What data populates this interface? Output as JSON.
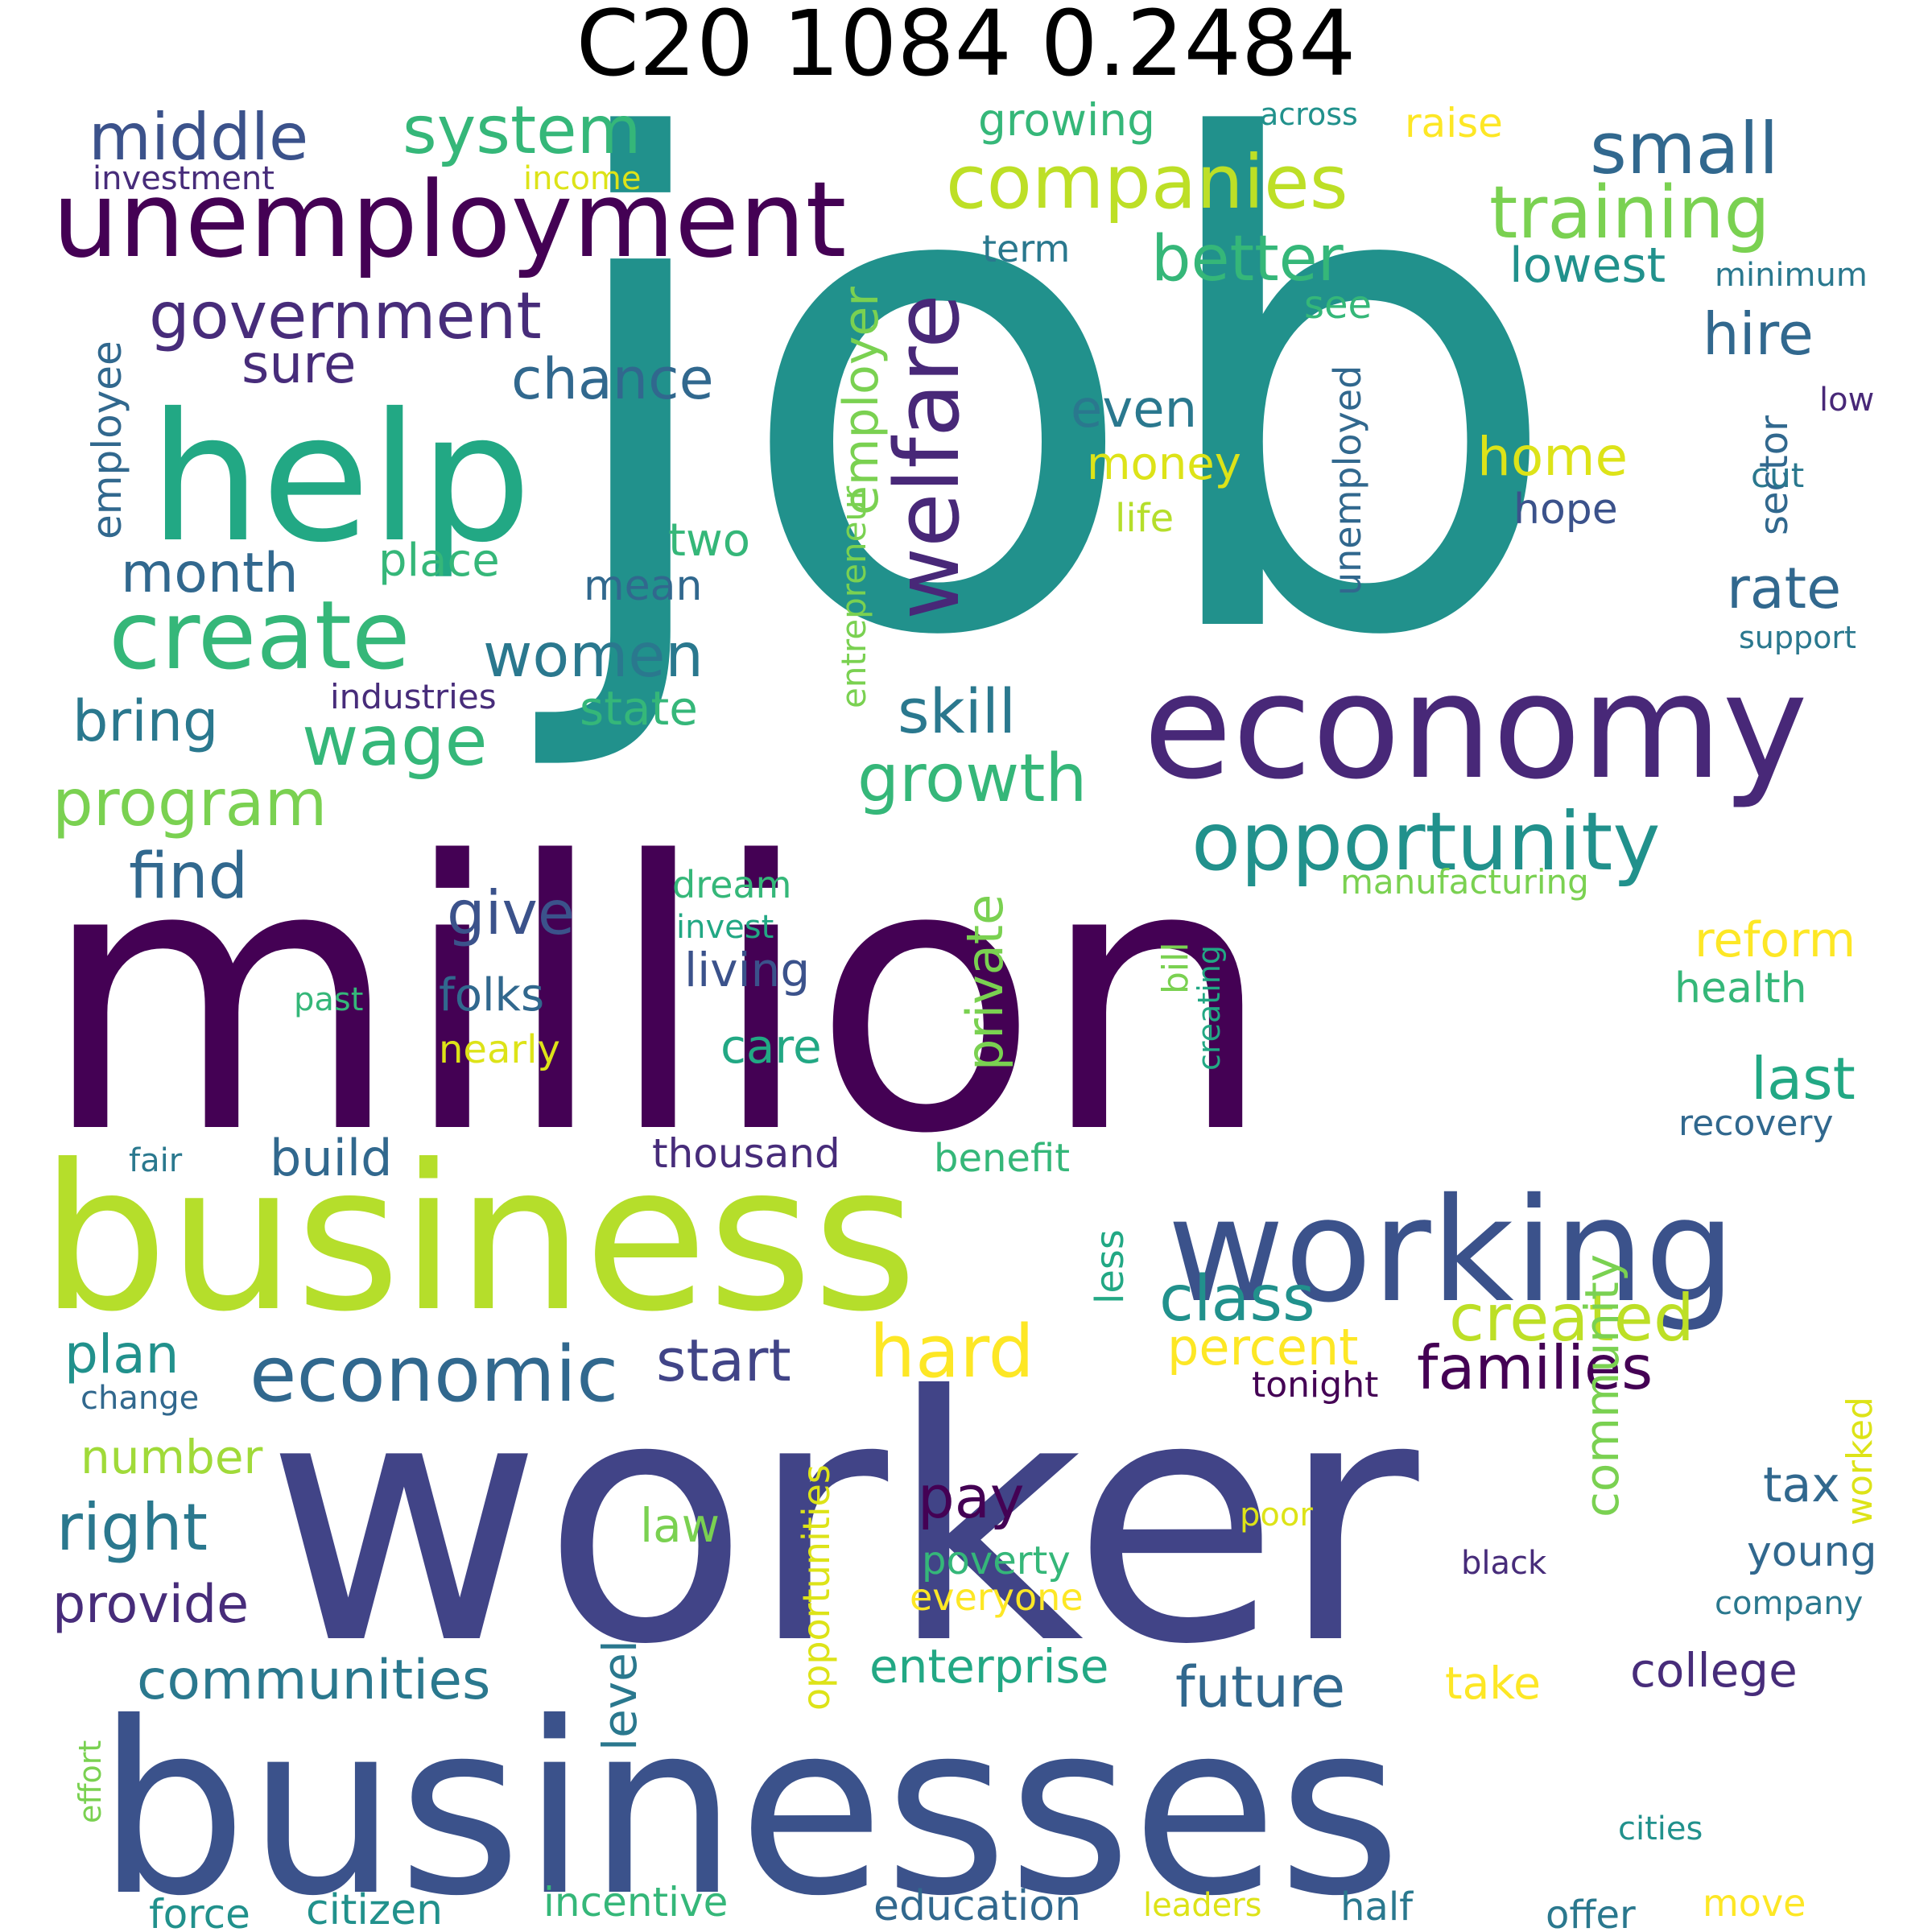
{
  "title": "C20 1084 0.2484",
  "words": [
    {
      "text": "job",
      "color": "#21918c"
    },
    {
      "text": "million",
      "color": "#440154"
    },
    {
      "text": "worker",
      "color": "#414487"
    },
    {
      "text": "businesses",
      "color": "#3b528b"
    },
    {
      "text": "business",
      "color": "#b5de2b"
    },
    {
      "text": "help",
      "color": "#22a884"
    },
    {
      "text": "economy",
      "color": "#482878"
    },
    {
      "text": "working",
      "color": "#3b528b"
    },
    {
      "text": "unemployment",
      "color": "#440154"
    },
    {
      "text": "create",
      "color": "#35b779"
    },
    {
      "text": "opportunity",
      "color": "#21918c"
    },
    {
      "text": "welfare",
      "color": "#482878"
    },
    {
      "text": "economic",
      "color": "#31688e"
    },
    {
      "text": "companies",
      "color": "#bddf26"
    },
    {
      "text": "training",
      "color": "#7ad151"
    },
    {
      "text": "system",
      "color": "#35b779"
    },
    {
      "text": "middle",
      "color": "#3b528b"
    },
    {
      "text": "government",
      "color": "#472c7a"
    },
    {
      "text": "small",
      "color": "#31688e"
    },
    {
      "text": "better",
      "color": "#35b779"
    },
    {
      "text": "wage",
      "color": "#35b779"
    },
    {
      "text": "growth",
      "color": "#35b779"
    },
    {
      "text": "program",
      "color": "#7ad151"
    },
    {
      "text": "hard",
      "color": "#fde725"
    },
    {
      "text": "created",
      "color": "#bddf26"
    },
    {
      "text": "families",
      "color": "#440154"
    },
    {
      "text": "class",
      "color": "#21918c"
    },
    {
      "text": "women",
      "color": "#2a788e"
    },
    {
      "text": "skill",
      "color": "#2a788e"
    },
    {
      "text": "start",
      "color": "#414487"
    },
    {
      "text": "right",
      "color": "#2a788e"
    },
    {
      "text": "future",
      "color": "#31688e"
    },
    {
      "text": "communities",
      "color": "#2a788e"
    },
    {
      "text": "pay",
      "color": "#440154"
    },
    {
      "text": "give",
      "color": "#3b528b"
    },
    {
      "text": "find",
      "color": "#31688e"
    },
    {
      "text": "chance",
      "color": "#31688e"
    },
    {
      "text": "hire",
      "color": "#31688e"
    },
    {
      "text": "rate",
      "color": "#31688e"
    },
    {
      "text": "last",
      "color": "#22a884"
    },
    {
      "text": "sure",
      "color": "#472c7a"
    },
    {
      "text": "bring",
      "color": "#2a788e"
    },
    {
      "text": "month",
      "color": "#31688e"
    },
    {
      "text": "even",
      "color": "#2a788e"
    },
    {
      "text": "home",
      "color": "#dde318"
    },
    {
      "text": "lowest",
      "color": "#21918c"
    },
    {
      "text": "provide",
      "color": "#472c7a"
    },
    {
      "text": "plan",
      "color": "#21918c"
    },
    {
      "text": "private",
      "color": "#7ad151"
    },
    {
      "text": "employer",
      "color": "#7ad151"
    },
    {
      "text": "community",
      "color": "#7ad151"
    },
    {
      "text": "percent",
      "color": "#fde725"
    },
    {
      "text": "level",
      "color": "#2a788e"
    },
    {
      "text": "reform",
      "color": "#fde725"
    },
    {
      "text": "enterprise",
      "color": "#22a884"
    },
    {
      "text": "build",
      "color": "#31688e"
    },
    {
      "text": "tax",
      "color": "#31688e"
    },
    {
      "text": "college",
      "color": "#472c7a"
    },
    {
      "text": "state",
      "color": "#35b779"
    },
    {
      "text": "place",
      "color": "#35b779"
    },
    {
      "text": "number",
      "color": "#a0da39"
    },
    {
      "text": "growing",
      "color": "#35b779"
    },
    {
      "text": "living",
      "color": "#3b528b"
    },
    {
      "text": "care",
      "color": "#22a884"
    },
    {
      "text": "folks",
      "color": "#31688e"
    },
    {
      "text": "law",
      "color": "#7ad151"
    },
    {
      "text": "two",
      "color": "#35b779"
    },
    {
      "text": "mean",
      "color": "#31688e"
    },
    {
      "text": "money",
      "color": "#dde318"
    },
    {
      "text": "hope",
      "color": "#3b528b"
    },
    {
      "text": "take",
      "color": "#fde725"
    },
    {
      "text": "young",
      "color": "#31688e"
    },
    {
      "text": "health",
      "color": "#35b779"
    },
    {
      "text": "unemployed",
      "color": "#31688e"
    },
    {
      "text": "sector",
      "color": "#31688e"
    },
    {
      "text": "entrepreneur",
      "color": "#7ad151"
    },
    {
      "text": "less",
      "color": "#22a884"
    },
    {
      "text": "employee",
      "color": "#31688e"
    },
    {
      "text": "thousand",
      "color": "#472c7a"
    },
    {
      "text": "poverty",
      "color": "#35b779"
    },
    {
      "text": "opportunities",
      "color": "#dde318"
    },
    {
      "text": "raise",
      "color": "#fde725"
    },
    {
      "text": "see",
      "color": "#35b779"
    },
    {
      "text": "term",
      "color": "#2a788e"
    },
    {
      "text": "benefit",
      "color": "#35b779"
    },
    {
      "text": "education",
      "color": "#31688e"
    },
    {
      "text": "citizen",
      "color": "#21918c"
    },
    {
      "text": "incentive",
      "color": "#35b779"
    },
    {
      "text": "recovery",
      "color": "#31688e"
    },
    {
      "text": "dream",
      "color": "#35b779"
    },
    {
      "text": "nearly",
      "color": "#dde318"
    },
    {
      "text": "bill",
      "color": "#7ad151"
    },
    {
      "text": "life",
      "color": "#b5de2b"
    },
    {
      "text": "manufacturing",
      "color": "#7ad151"
    },
    {
      "text": "everyone",
      "color": "#fde725"
    },
    {
      "text": "industries",
      "color": "#472c7a"
    },
    {
      "text": "force",
      "color": "#21918c"
    },
    {
      "text": "half",
      "color": "#2a788e"
    },
    {
      "text": "offer",
      "color": "#2a788e"
    },
    {
      "text": "move",
      "color": "#fde725"
    },
    {
      "text": "worked",
      "color": "#dde318"
    },
    {
      "text": "tonight",
      "color": "#440154"
    },
    {
      "text": "invest",
      "color": "#22a884"
    },
    {
      "text": "income",
      "color": "#dde318"
    },
    {
      "text": "investment",
      "color": "#472c7a"
    },
    {
      "text": "support",
      "color": "#2a788e"
    },
    {
      "text": "minimum",
      "color": "#2a788e"
    },
    {
      "text": "cut",
      "color": "#2a788e"
    },
    {
      "text": "across",
      "color": "#21918c"
    },
    {
      "text": "low",
      "color": "#482878"
    },
    {
      "text": "company",
      "color": "#2a788e"
    },
    {
      "text": "black",
      "color": "#472c7a"
    },
    {
      "text": "poor",
      "color": "#dde318"
    },
    {
      "text": "past",
      "color": "#35b779"
    },
    {
      "text": "fair",
      "color": "#2a788e"
    },
    {
      "text": "change",
      "color": "#31688e"
    },
    {
      "text": "effort",
      "color": "#7ad151"
    },
    {
      "text": "leaders",
      "color": "#dde318"
    },
    {
      "text": "cities",
      "color": "#21918c"
    },
    {
      "text": "creating",
      "color": "#22a884"
    }
  ]
}
